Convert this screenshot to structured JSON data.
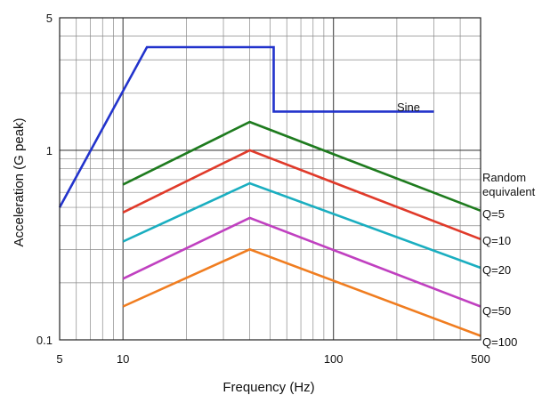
{
  "chart_data": {
    "type": "line",
    "title": "",
    "xlabel": "Frequency (Hz)",
    "ylabel": "Acceleration (G peak)",
    "x_scale": "log",
    "y_scale": "log",
    "xlim": [
      5,
      500
    ],
    "ylim": [
      0.1,
      5
    ],
    "grid": true,
    "legend": "none",
    "x_ticks": [
      "5",
      "10",
      "100",
      "500"
    ],
    "y_ticks": [
      "0.1",
      "1",
      "5"
    ],
    "series": [
      {
        "name": "Sine",
        "color": "#2233cc",
        "x": [
          5,
          13,
          13,
          52,
          52,
          300
        ],
        "y": [
          0.5,
          3.5,
          3.5,
          3.5,
          1.6,
          1.6
        ]
      },
      {
        "name": "Random equivalent Q=5",
        "color": "#1e7b1e",
        "x": [
          10,
          40,
          500
        ],
        "y": [
          0.66,
          1.41,
          0.48
        ]
      },
      {
        "name": "Q=10",
        "color": "#e03a2a",
        "x": [
          10,
          40,
          500
        ],
        "y": [
          0.47,
          1.0,
          0.34
        ]
      },
      {
        "name": "Q=20",
        "color": "#1aaec0",
        "x": [
          10,
          40,
          500
        ],
        "y": [
          0.33,
          0.67,
          0.24
        ]
      },
      {
        "name": "Q=50",
        "color": "#c040c0",
        "x": [
          10,
          40,
          500
        ],
        "y": [
          0.21,
          0.44,
          0.15
        ]
      },
      {
        "name": "Q=100",
        "color": "#f07d20",
        "x": [
          10,
          40,
          500
        ],
        "y": [
          0.15,
          0.3,
          0.105
        ]
      }
    ],
    "labels": {
      "sine": "Sine",
      "random_line1": "Random",
      "random_line2": "equivalent",
      "q5": "Q=5",
      "q10": "Q=10",
      "q20": "Q=20",
      "q50": "Q=50",
      "q100": "Q=100"
    }
  }
}
